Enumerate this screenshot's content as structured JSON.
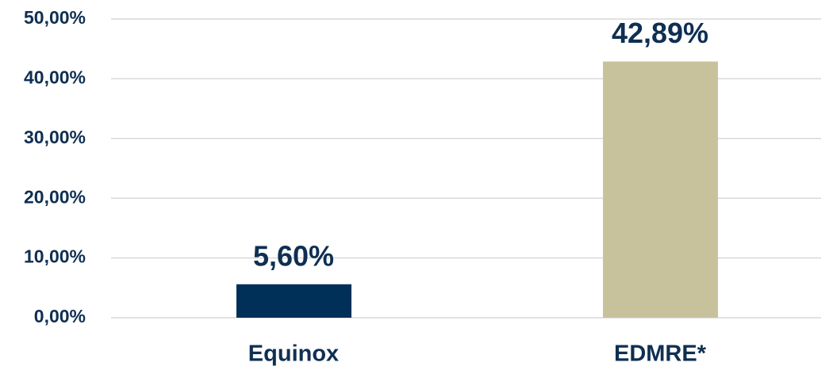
{
  "chart_data": {
    "type": "bar",
    "categories": [
      "Equinox",
      "EDMRE*"
    ],
    "values": [
      5.6,
      42.89
    ],
    "value_labels": [
      "5,60%",
      "42,89%"
    ],
    "colors": [
      "#003057",
      "#c8c29c"
    ],
    "ylim": [
      0,
      50
    ],
    "yticks": [
      {
        "value": 0,
        "label": "0,00%"
      },
      {
        "value": 10,
        "label": "10,00%"
      },
      {
        "value": 20,
        "label": "20,00%"
      },
      {
        "value": 30,
        "label": "30,00%"
      },
      {
        "value": 40,
        "label": "40,00%"
      },
      {
        "value": 50,
        "label": "50,00%"
      }
    ],
    "grid": true
  }
}
